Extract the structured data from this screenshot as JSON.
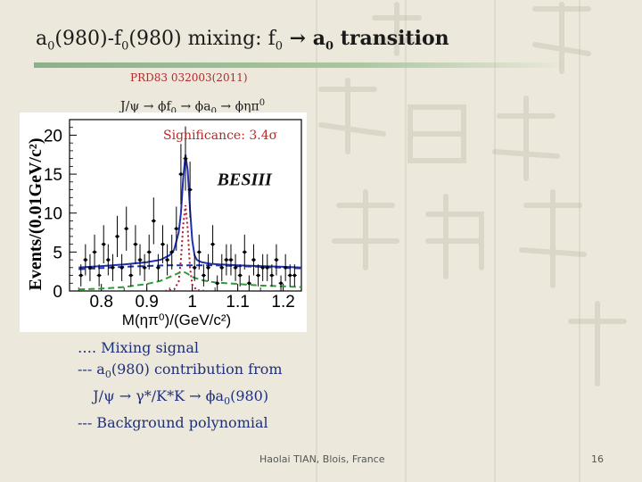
{
  "slide": {
    "title_main": "a",
    "title_parts": [
      "a",
      "0",
      "(980)-f",
      "0",
      "(980) mixing:  f",
      "0",
      " → a",
      "0",
      " transition"
    ],
    "reference": "PRD83  032003(2011)",
    "decay_chain": [
      "J/ψ → ϕf",
      "0",
      " → ϕa",
      "0",
      " → ϕηπ",
      "0"
    ],
    "significance": "Significance:  3.4σ",
    "legend": {
      "line1": "…. Mixing signal",
      "line2_parts": [
        "--- a",
        "0",
        "(980) contribution from"
      ],
      "line3_parts": [
        "J/ψ → γ*/K*K → ϕa",
        "0",
        "(980)"
      ],
      "line4": "--- Background polynomial"
    },
    "footer": "Haolai TIAN, Blois, France",
    "page_number": "16"
  },
  "chart_data": {
    "type": "line",
    "watermark": "BESIII",
    "ylabel": "Events/(0.01GeV/c²)",
    "xlabel": "M(ηπ⁰)/(GeV/c²)",
    "xlim": [
      0.73,
      1.24
    ],
    "ylim": [
      0,
      22
    ],
    "x_ticks": [
      "0.8",
      "0.9",
      "1",
      "1.1",
      "1.2"
    ],
    "y_ticks": [
      "0",
      "5",
      "10",
      "15",
      "20"
    ],
    "series": [
      {
        "name": "Data",
        "style": "points",
        "color": "#000000",
        "x": [
          0.755,
          0.765,
          0.775,
          0.785,
          0.795,
          0.805,
          0.815,
          0.825,
          0.835,
          0.845,
          0.855,
          0.865,
          0.875,
          0.885,
          0.895,
          0.905,
          0.915,
          0.925,
          0.935,
          0.945,
          0.955,
          0.965,
          0.975,
          0.985,
          0.995,
          1.005,
          1.015,
          1.025,
          1.035,
          1.045,
          1.055,
          1.065,
          1.075,
          1.085,
          1.095,
          1.105,
          1.115,
          1.125,
          1.135,
          1.145,
          1.155,
          1.165,
          1.175,
          1.185,
          1.195,
          1.205,
          1.215,
          1.225
        ],
        "y": [
          2,
          4,
          3,
          5,
          2,
          6,
          4,
          3,
          7,
          3,
          8,
          2,
          6,
          4,
          3,
          5,
          9,
          3,
          6,
          4,
          5,
          8,
          15,
          17,
          13,
          3,
          5,
          2,
          3,
          6,
          1,
          3,
          4,
          4,
          3,
          2,
          5,
          1,
          4,
          2,
          3,
          3,
          2,
          4,
          1,
          3,
          2,
          2
        ]
      },
      {
        "name": "Total fit",
        "style": "solid",
        "color": "#1f2fb0",
        "x": [
          0.75,
          0.8,
          0.85,
          0.9,
          0.93,
          0.95,
          0.96,
          0.97,
          0.975,
          0.98,
          0.985,
          0.99,
          0.995,
          1.0,
          1.005,
          1.01,
          1.02,
          1.04,
          1.06,
          1.1,
          1.15,
          1.2,
          1.24
        ],
        "y": [
          3.0,
          3.2,
          3.4,
          3.7,
          4.0,
          4.6,
          5.3,
          7.5,
          10.0,
          14.5,
          17.5,
          15.5,
          10.5,
          6.5,
          4.6,
          4.0,
          3.7,
          3.5,
          3.4,
          3.3,
          3.2,
          3.1,
          3.0
        ]
      },
      {
        "name": "Mixing signal",
        "style": "dotted",
        "color": "#b0182a",
        "x": [
          0.94,
          0.96,
          0.97,
          0.975,
          0.98,
          0.985,
          0.99,
          0.995,
          1.0,
          1.01,
          1.03
        ],
        "y": [
          0,
          0.2,
          1.2,
          4.0,
          8.5,
          11.0,
          8.0,
          3.0,
          0.8,
          0.1,
          0
        ]
      },
      {
        "name": "a0(980) contribution",
        "style": "dashed",
        "color": "#2e9a3a",
        "x": [
          0.75,
          0.8,
          0.85,
          0.9,
          0.93,
          0.95,
          0.97,
          0.98,
          0.99,
          1.0,
          1.02,
          1.05,
          1.1,
          1.15,
          1.2,
          1.24
        ],
        "y": [
          0.2,
          0.3,
          0.5,
          0.9,
          1.3,
          1.8,
          2.3,
          2.5,
          2.2,
          1.8,
          1.4,
          1.1,
          0.9,
          0.7,
          0.6,
          0.5
        ]
      },
      {
        "name": "Background polynomial",
        "style": "dashed",
        "color": "#1f2fb0",
        "x": [
          0.75,
          0.85,
          0.95,
          1.05,
          1.15,
          1.24
        ],
        "y": [
          2.8,
          3.1,
          3.3,
          3.3,
          3.1,
          2.9
        ]
      }
    ]
  }
}
